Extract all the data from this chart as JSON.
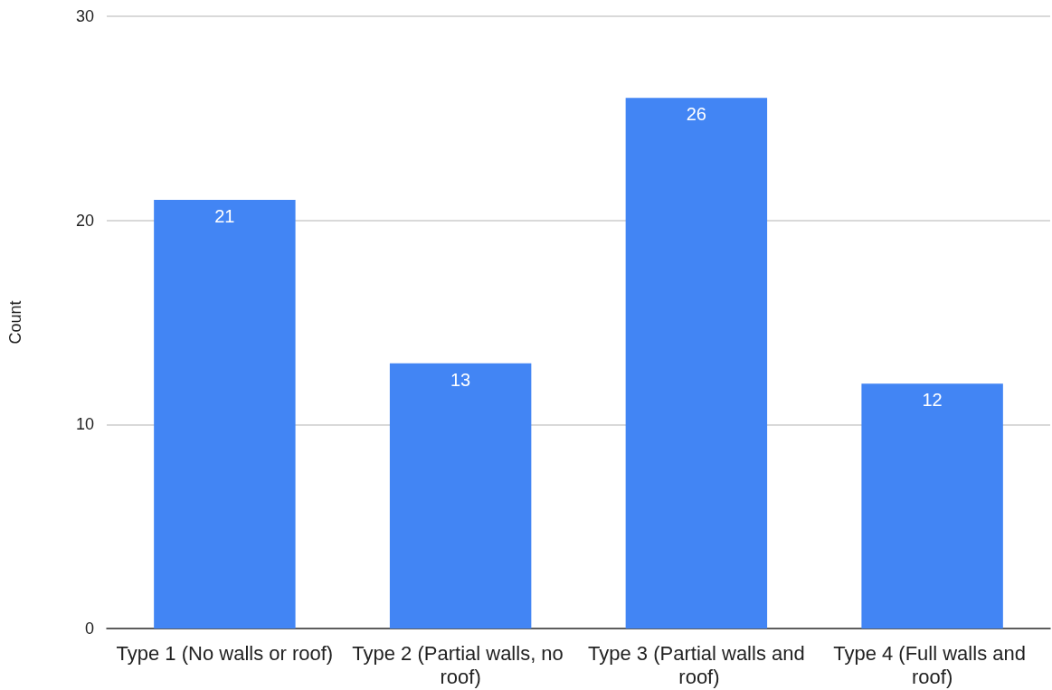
{
  "chart_data": {
    "type": "bar",
    "ylabel": "Count",
    "categories": [
      "Type 1 (No walls or roof)",
      "Type 2 (Partial walls, no roof)",
      "Type 3 (Partial walls and roof)",
      "Type 4 (Full walls and roof)"
    ],
    "values": [
      21,
      13,
      26,
      12
    ],
    "color": "#4285f4",
    "ylim": [
      0,
      30
    ],
    "yticks": [
      0,
      10,
      20,
      30
    ],
    "grid": "y",
    "data_labels": true
  }
}
